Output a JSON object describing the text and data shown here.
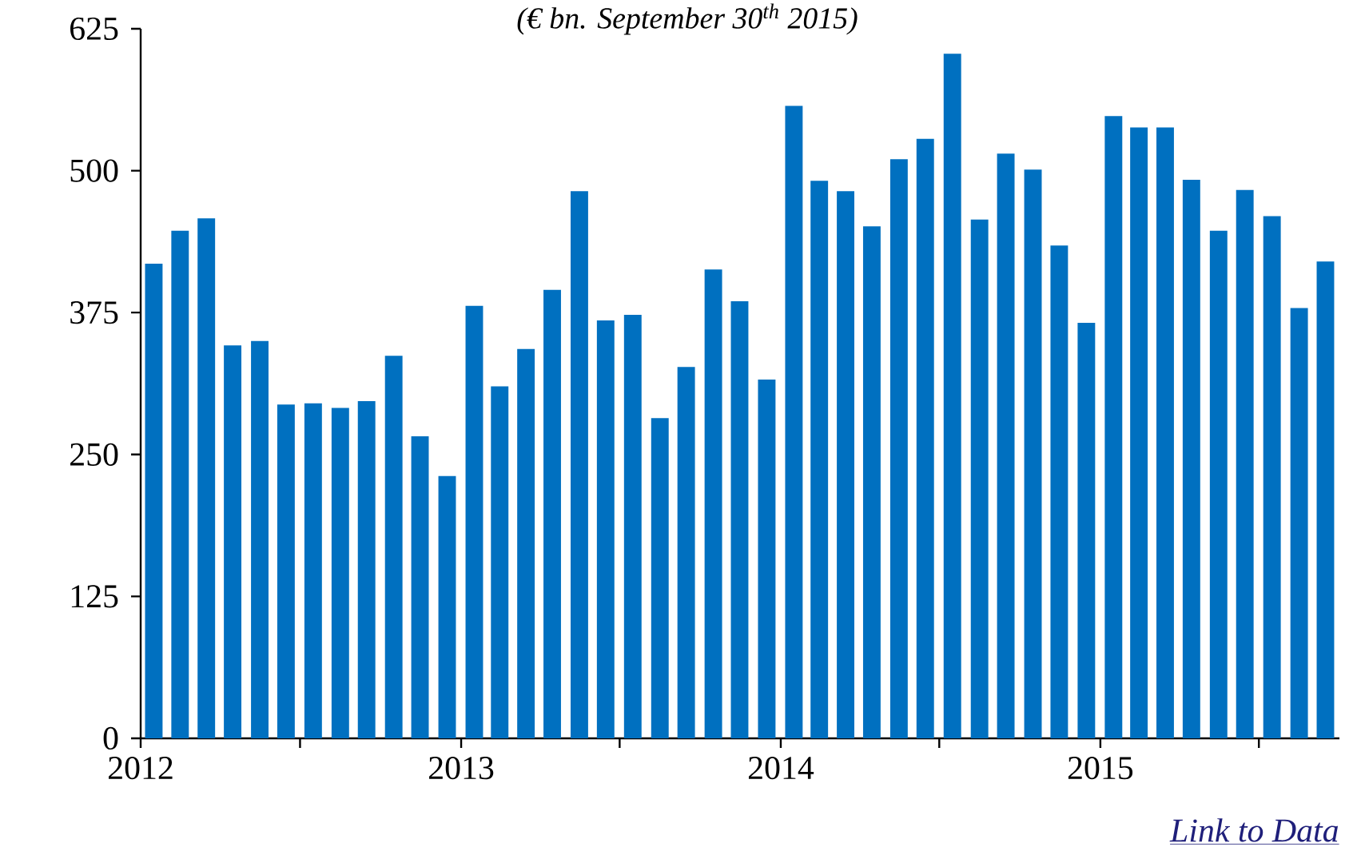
{
  "chart_data": {
    "type": "bar",
    "title": "(€ bn. September 30$^{th}$ 2015)",
    "x": [
      "2012-01-16",
      "2012-02-15",
      "2012-03-16",
      "2012-04-15",
      "2012-05-16",
      "2012-06-15",
      "2012-07-16",
      "2012-08-16",
      "2012-09-15",
      "2012-10-16",
      "2012-11-15",
      "2012-12-16",
      "2013-01-16",
      "2013-02-14",
      "2013-03-16",
      "2013-04-15",
      "2013-05-16",
      "2013-06-15",
      "2013-07-16",
      "2013-08-16",
      "2013-09-15",
      "2013-10-16",
      "2013-11-15",
      "2013-12-16",
      "2014-01-16",
      "2014-02-14",
      "2014-03-16",
      "2014-04-15",
      "2014-05-16",
      "2014-06-15",
      "2014-07-16",
      "2014-08-16",
      "2014-09-15",
      "2014-10-16",
      "2014-11-15",
      "2014-12-16",
      "2015-01-16",
      "2015-02-14",
      "2015-03-16",
      "2015-04-15",
      "2015-05-16",
      "2015-06-15",
      "2015-07-16",
      "2015-08-16",
      "2015-09-15"
    ],
    "values": [
      418,
      447,
      458,
      346,
      350,
      294,
      295,
      291,
      297,
      337,
      266,
      231,
      381,
      310,
      343,
      395,
      482,
      368,
      373,
      282,
      327,
      413,
      385,
      316,
      557,
      491,
      482,
      451,
      510,
      528,
      603,
      457,
      515,
      501,
      434,
      366,
      548,
      538,
      538,
      492,
      447,
      483,
      460,
      379,
      420
    ],
    "color": "#0070c0",
    "xlim": [
      "2012-01-01",
      "2015-10-01"
    ],
    "xticks": [
      "2012",
      {
        "value": "2012-07-01",
        "label": null
      },
      "2013",
      {
        "value": "2013-07-01",
        "label": null
      },
      "2014",
      {
        "value": "2014-07-01",
        "label": null
      },
      "2015",
      {
        "value": "2015-07-01",
        "label": null
      }
    ],
    "ylim": [
      0,
      625
    ],
    "yticks": [
      0,
      125,
      250,
      375,
      500,
      625
    ],
    "annotations": [
      "Link to Data"
    ]
  }
}
